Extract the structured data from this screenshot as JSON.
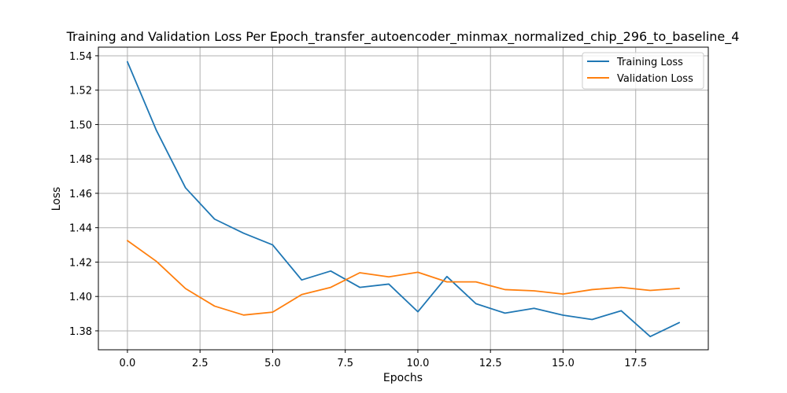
{
  "chart_data": {
    "type": "line",
    "title": "Training and Validation Loss Per Epoch_transfer_autoencoder_minmax_normalized_chip_296_to_baseline_4",
    "xlabel": "Epochs",
    "ylabel": "Loss",
    "xlim": [
      -1.0,
      20.0
    ],
    "ylim": [
      1.369,
      1.545
    ],
    "x_ticks": [
      0.0,
      2.5,
      5.0,
      7.5,
      10.0,
      12.5,
      15.0,
      17.5
    ],
    "x_tick_labels": [
      "0.0",
      "2.5",
      "5.0",
      "7.5",
      "10.0",
      "12.5",
      "15.0",
      "17.5"
    ],
    "y_ticks": [
      1.38,
      1.4,
      1.42,
      1.44,
      1.46,
      1.48,
      1.5,
      1.52,
      1.54
    ],
    "y_tick_labels": [
      "1.38",
      "1.40",
      "1.42",
      "1.44",
      "1.46",
      "1.48",
      "1.50",
      "1.52",
      "1.54"
    ],
    "grid": true,
    "legend_position": "top-right",
    "x": [
      0,
      1,
      2,
      3,
      4,
      5,
      6,
      7,
      8,
      9,
      10,
      11,
      12,
      13,
      14,
      15,
      16,
      17,
      18,
      19
    ],
    "series": [
      {
        "name": "Training Loss",
        "color": "#1f77b4",
        "values": [
          1.5365,
          1.4965,
          1.4632,
          1.445,
          1.4368,
          1.43,
          1.4096,
          1.4148,
          1.4053,
          1.4072,
          1.3911,
          1.4116,
          1.3958,
          1.3903,
          1.3931,
          1.3891,
          1.3866,
          1.3917,
          1.3767,
          1.3848
        ]
      },
      {
        "name": "Validation Loss",
        "color": "#ff7f0e",
        "values": [
          1.4325,
          1.4204,
          1.4046,
          1.3944,
          1.3892,
          1.3909,
          1.4011,
          1.4053,
          1.4138,
          1.4114,
          1.4141,
          1.4085,
          1.4085,
          1.404,
          1.4033,
          1.4014,
          1.404,
          1.4053,
          1.4035,
          1.4047
        ]
      }
    ]
  }
}
